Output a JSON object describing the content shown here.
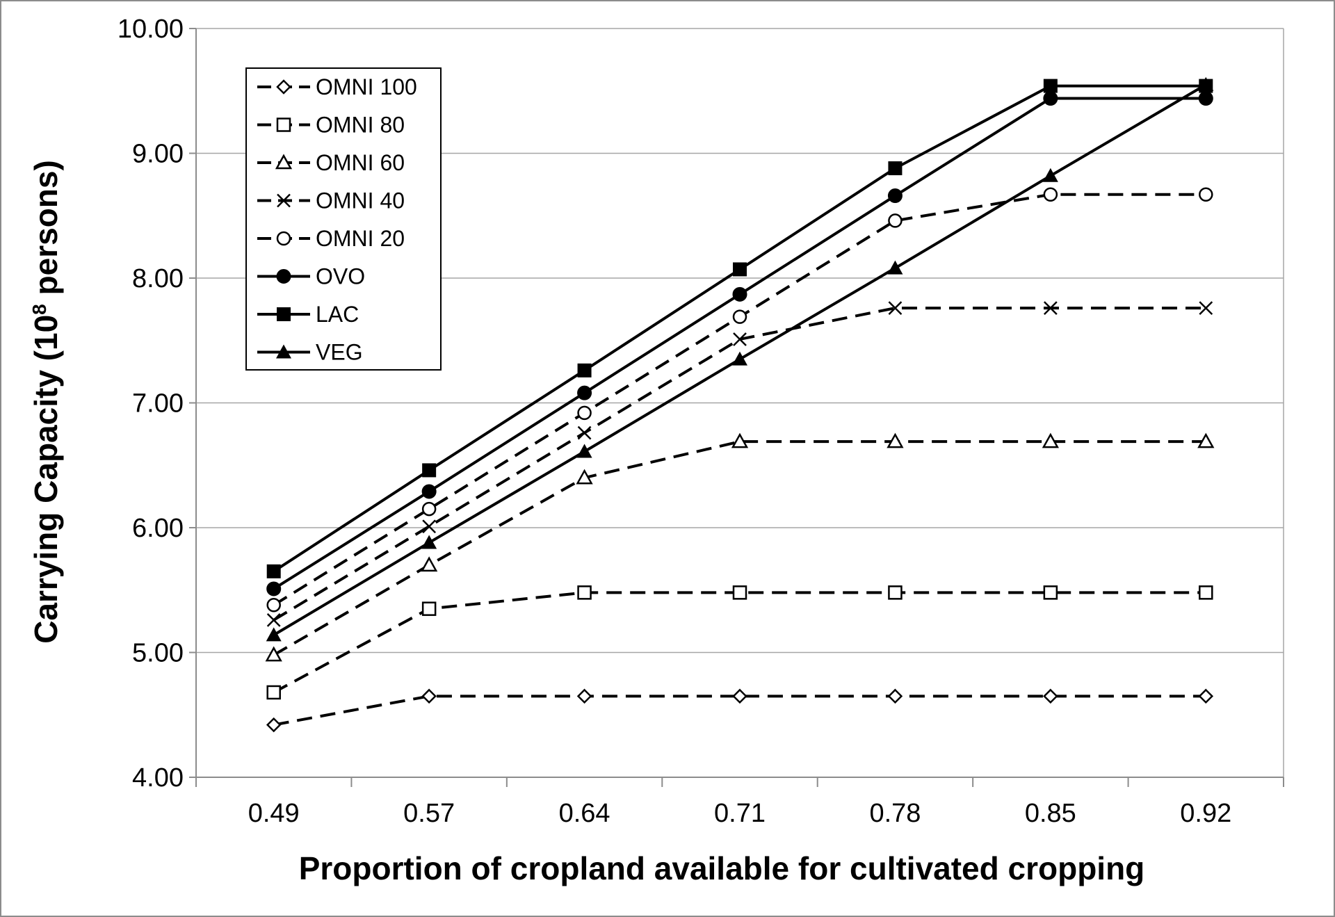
{
  "chart_data": {
    "type": "line",
    "title": "",
    "xlabel": "Proportion of cropland available for cultivated cropping",
    "ylabel": "Carrying Capacity (10",
    "ylabel_sup": "8",
    "ylabel_suffix": " persons)",
    "categories": [
      "0.49",
      "0.57",
      "0.64",
      "0.71",
      "0.78",
      "0.85",
      "0.92"
    ],
    "ylim": [
      4,
      10
    ],
    "yticks": [
      "4.00",
      "5.00",
      "6.00",
      "7.00",
      "8.00",
      "9.00",
      "10.00"
    ],
    "grid": true,
    "legend_position": "top-left",
    "series": [
      {
        "name": "OMNI 100",
        "marker": "diamond-open",
        "dash": true,
        "values": [
          4.42,
          4.65,
          4.65,
          4.65,
          4.65,
          4.65,
          4.65
        ]
      },
      {
        "name": "OMNI 80",
        "marker": "square-open",
        "dash": true,
        "values": [
          4.68,
          5.35,
          5.48,
          5.48,
          5.48,
          5.48,
          5.48
        ]
      },
      {
        "name": "OMNI 60",
        "marker": "triangle-open",
        "dash": true,
        "values": [
          4.98,
          5.7,
          6.4,
          6.69,
          6.69,
          6.69,
          6.69
        ]
      },
      {
        "name": "OMNI 40",
        "marker": "x",
        "dash": true,
        "values": [
          5.26,
          6.01,
          6.76,
          7.51,
          7.76,
          7.76,
          7.76
        ]
      },
      {
        "name": "OMNI 20",
        "marker": "circle-open",
        "dash": true,
        "values": [
          5.38,
          6.15,
          6.92,
          7.69,
          8.46,
          8.67,
          8.67
        ]
      },
      {
        "name": "OVO",
        "marker": "circle-filled",
        "dash": false,
        "values": [
          5.51,
          6.29,
          7.08,
          7.87,
          8.66,
          9.44,
          9.44
        ]
      },
      {
        "name": "LAC",
        "marker": "square-filled",
        "dash": false,
        "values": [
          5.65,
          6.46,
          7.26,
          8.07,
          8.88,
          9.54,
          9.54
        ]
      },
      {
        "name": "VEG",
        "marker": "triangle-filled",
        "dash": false,
        "values": [
          5.14,
          5.88,
          6.61,
          7.35,
          8.08,
          8.82,
          9.55
        ]
      }
    ]
  }
}
